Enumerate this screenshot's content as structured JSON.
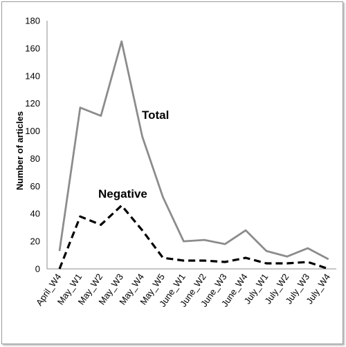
{
  "chart_data": {
    "type": "line",
    "categories": [
      "April_W4",
      "May_W1",
      "May_W2",
      "May_W3",
      "May_W4",
      "May_W5",
      "June_W1",
      "June_W2",
      "June_W3",
      "June_W4",
      "July_W1",
      "July_W2",
      "July_W3",
      "July_W4"
    ],
    "series": [
      {
        "name": "Total",
        "values": [
          13,
          117,
          111,
          165,
          96,
          52,
          20,
          21,
          18,
          28,
          13,
          9,
          15,
          7
        ],
        "color": "#8c8c8c",
        "style": "solid"
      },
      {
        "name": "Negative",
        "values": [
          0,
          38,
          32,
          46,
          28,
          8,
          6,
          6,
          5,
          8,
          4,
          4,
          5,
          0
        ],
        "color": "#000000",
        "style": "dashed"
      }
    ],
    "ylabel": "Number of articles",
    "ylim": [
      0,
      180
    ],
    "yticks": [
      0,
      20,
      40,
      60,
      80,
      100,
      120,
      140,
      160,
      180
    ],
    "grid": false,
    "legend": "inline"
  }
}
